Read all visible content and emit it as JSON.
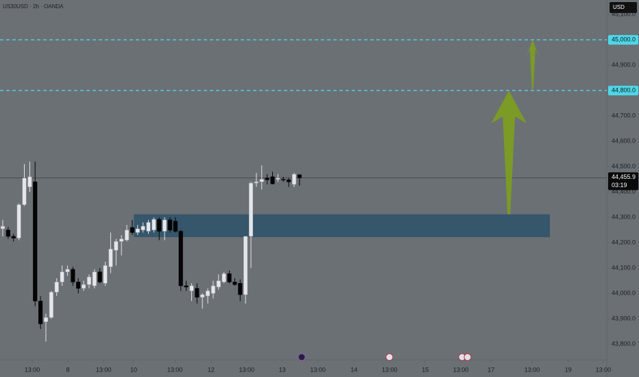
{
  "chart_data": {
    "type": "candlestick",
    "title": "US30USD · 2h · OANDA",
    "currency": "USD",
    "ylim": [
      43738,
      45157
    ],
    "yticks": [
      {
        "value": 43800,
        "label": "43,800.0"
      },
      {
        "value": 43900,
        "label": "43,900.0"
      },
      {
        "value": 44000,
        "label": "44,000.0"
      },
      {
        "value": 44100,
        "label": "44,100.0"
      },
      {
        "value": 44200,
        "label": "44,200.0"
      },
      {
        "value": 44300,
        "label": "44,300.0"
      },
      {
        "value": 44400,
        "label": "44,400.0"
      },
      {
        "value": 44500,
        "label": "44,500.0"
      },
      {
        "value": 44600,
        "label": "44,600.0"
      },
      {
        "value": 44700,
        "label": "44,700.0"
      },
      {
        "value": 44900,
        "label": "44,900.0"
      },
      {
        "value": 45100,
        "label": "45,100.0"
      }
    ],
    "xticks": [
      {
        "value": 5.46,
        "label": "13:00"
      },
      {
        "value": 12.07,
        "label": "8"
      },
      {
        "value": 18.68,
        "label": "13:00"
      },
      {
        "value": 24.27,
        "label": "10"
      },
      {
        "value": 31.9,
        "label": "13:00"
      },
      {
        "value": 38.6,
        "label": "12"
      },
      {
        "value": 45.2,
        "label": "13:00"
      },
      {
        "value": 51.8,
        "label": "13"
      },
      {
        "value": 58.4,
        "label": "13:00"
      },
      {
        "value": 65.1,
        "label": "14"
      },
      {
        "value": 71.7,
        "label": "13:00"
      },
      {
        "value": 78.3,
        "label": "15"
      },
      {
        "value": 84.9,
        "label": "13:00"
      },
      {
        "value": 90.5,
        "label": "17"
      },
      {
        "value": 98.1,
        "label": "13:00"
      },
      {
        "value": 104.8,
        "label": "19"
      },
      {
        "value": 111.3,
        "label": "13:00"
      }
    ],
    "colors": {
      "up": "#e4e6ea",
      "down": "#050505",
      "level": "#4fd6e6",
      "zone": "#34546a",
      "arrow": "#7c9c22"
    },
    "open": [
      44255,
      44250,
      44225,
      44218,
      44350,
      44420,
      44440,
      43970,
      43888,
      43905,
      44005,
      44045,
      44085,
      44095,
      44045,
      44020,
      44035,
      44030,
      44085,
      44040,
      44105,
      44170,
      44205,
      44210,
      44260,
      44240,
      44250,
      44245,
      44250,
      44292,
      44245,
      44290,
      44285,
      44245,
      44030,
      44010,
      44020,
      43985,
      43990,
      44000,
      44025,
      44045,
      44078,
      44045,
      44040,
      43995,
      44225,
      44435,
      44440,
      44455,
      44460,
      44450,
      44450,
      44448,
      44430,
      44468
    ],
    "high": [
      44290,
      44262,
      44235,
      44355,
      44510,
      44520,
      44520,
      43990,
      43920,
      44010,
      44060,
      44110,
      44110,
      44105,
      44060,
      44050,
      44075,
      44095,
      44100,
      44125,
      44240,
      44215,
      44230,
      44270,
      44290,
      44270,
      44280,
      44290,
      44300,
      44300,
      44300,
      44300,
      44300,
      44250,
      44050,
      44040,
      44040,
      44000,
      44020,
      44050,
      44075,
      44085,
      44090,
      44060,
      44055,
      44225,
      44440,
      44475,
      44505,
      44470,
      44480,
      44470,
      44460,
      44455,
      44475,
      44470
    ],
    "low": [
      44225,
      44215,
      44205,
      44210,
      44345,
      44400,
      43950,
      43860,
      43810,
      43900,
      43990,
      44030,
      44070,
      44030,
      44000,
      44010,
      44020,
      44020,
      44040,
      44030,
      44080,
      44110,
      44150,
      44205,
      44230,
      44230,
      44240,
      44235,
      44240,
      44210,
      44210,
      44240,
      44240,
      44010,
      44010,
      43970,
      43960,
      43940,
      43960,
      43980,
      44015,
      44040,
      44040,
      44030,
      43970,
      43960,
      44100,
      44420,
      44410,
      44430,
      44430,
      44440,
      44440,
      44420,
      44420,
      44425
    ],
    "close": [
      44265,
      44225,
      44218,
      44350,
      44455,
      44460,
      43970,
      43880,
      43905,
      44005,
      44045,
      44085,
      44095,
      44045,
      44020,
      44035,
      44065,
      44085,
      44045,
      44110,
      44175,
      44205,
      44215,
      44250,
      44240,
      44255,
      44265,
      44280,
      44292,
      44245,
      44290,
      44250,
      44245,
      44030,
      44025,
      44030,
      43985,
      43995,
      44010,
      44030,
      44050,
      44078,
      44045,
      44035,
      43995,
      44225,
      44435,
      44440,
      44450,
      44448,
      44432,
      44455,
      44448,
      44440,
      44470,
      44455.9
    ],
    "levels": [
      {
        "value": 45000,
        "label": "45,000.0"
      },
      {
        "value": 44800,
        "label": "44,800.0"
      }
    ],
    "zone": {
      "x0": 24.3,
      "x1": 101.4,
      "low": 44222,
      "high": 44312
    },
    "arrows": [
      {
        "x": 93.8,
        "from": 44312,
        "to": 44800
      },
      {
        "x": 98.2,
        "from": 44805,
        "to": 45000
      }
    ],
    "last_price": {
      "value": 44455.9,
      "label": "44,455.9"
    },
    "countdown": "03:19"
  }
}
